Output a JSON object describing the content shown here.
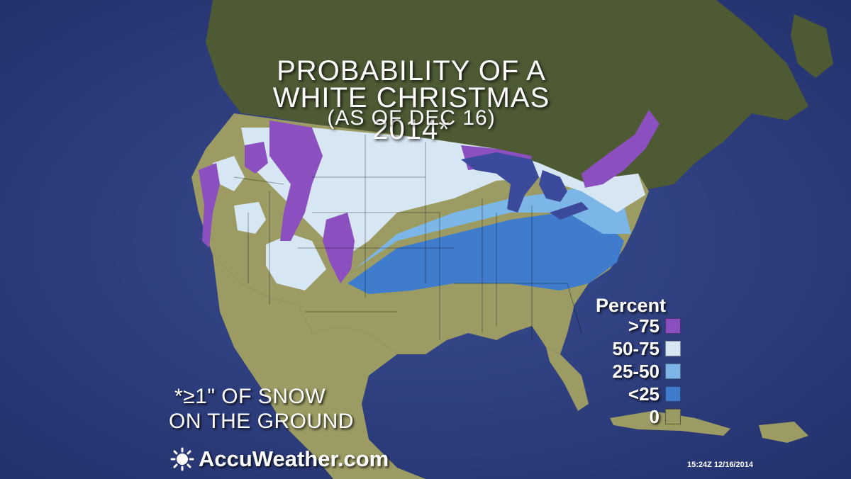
{
  "title": {
    "line1": "PROBABILITY OF A",
    "line2": "WHITE CHRISTMAS 2014*",
    "subtitle": "(AS OF DEC 16)"
  },
  "legend": {
    "title": "Percent",
    "items": [
      {
        "label": ">75",
        "color": "#8b4fbf"
      },
      {
        "label": "50-75",
        "color": "#d6e6f2"
      },
      {
        "label": "25-50",
        "color": "#7cb6e6"
      },
      {
        "label": "<25",
        "color": "#3f7ccc"
      },
      {
        "label": "0",
        "color": "#9a9a62"
      }
    ]
  },
  "footnote": {
    "line1": "*≥1\" OF SNOW",
    "line2": "ON THE GROUND"
  },
  "brand": {
    "name": "AccuWeather.com"
  },
  "timestamp": "15:24Z 12/16/2014",
  "colors": {
    "ocean": "#2a3a7a",
    "land_canada": "#4a5a32",
    "land_us": "#9a9a62",
    "great_lakes": "#3b4a9a"
  }
}
